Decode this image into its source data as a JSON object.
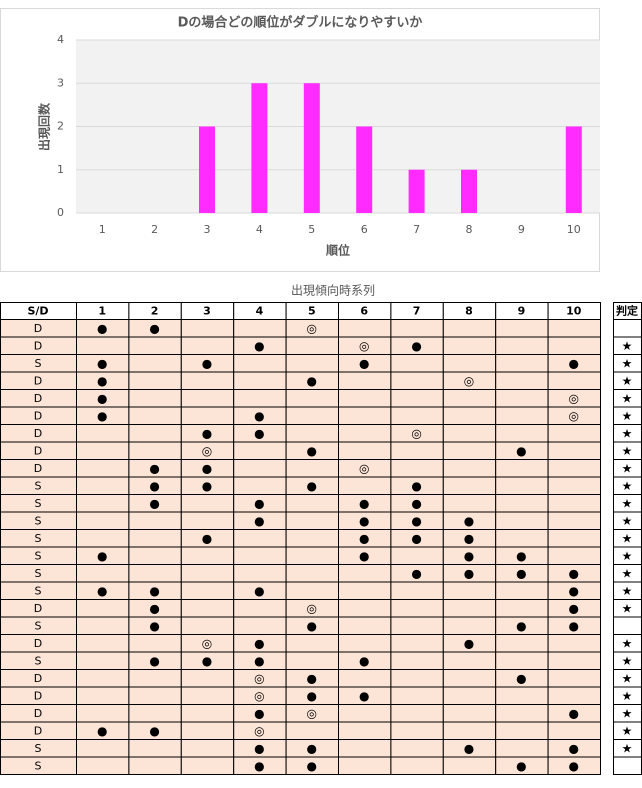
{
  "chart_data": {
    "type": "bar",
    "title": "Dの場合どの順位がダブルになりやすいか",
    "x_label": "順位",
    "y_label": "出現回数",
    "categories": [
      "1",
      "2",
      "3",
      "4",
      "5",
      "6",
      "7",
      "8",
      "9",
      "10"
    ],
    "values": [
      0,
      0,
      2,
      3,
      3,
      2,
      1,
      1,
      0,
      2
    ],
    "color": "#ff2bff",
    "ylim": [
      0,
      4
    ],
    "yticks": [
      0,
      1,
      2,
      3,
      4
    ],
    "grid": true
  },
  "table": {
    "title": "出現傾向時系列",
    "header": [
      "S/D",
      "1",
      "2",
      "3",
      "4",
      "5",
      "6",
      "7",
      "8",
      "9",
      "10",
      "判定"
    ],
    "rows": [
      [
        "D",
        "●",
        "●",
        null,
        null,
        "◎",
        null,
        null,
        null,
        null,
        null,
        null
      ],
      [
        "D",
        null,
        null,
        null,
        "●",
        null,
        "◎",
        "●",
        null,
        null,
        null,
        "★"
      ],
      [
        "S",
        "●",
        null,
        "●",
        null,
        null,
        "●",
        null,
        null,
        null,
        "●",
        "★"
      ],
      [
        "D",
        "●",
        null,
        null,
        null,
        "●",
        null,
        null,
        "◎",
        null,
        null,
        "★"
      ],
      [
        "D",
        "●",
        null,
        null,
        null,
        null,
        null,
        null,
        null,
        null,
        "◎",
        "★"
      ],
      [
        "D",
        "●",
        null,
        null,
        "●",
        null,
        null,
        null,
        null,
        null,
        "◎",
        "★"
      ],
      [
        "D",
        null,
        null,
        "●",
        "●",
        null,
        null,
        "◎",
        null,
        null,
        null,
        "★"
      ],
      [
        "D",
        null,
        null,
        "◎",
        null,
        "●",
        null,
        null,
        null,
        "●",
        null,
        "★"
      ],
      [
        "D",
        null,
        "●",
        "●",
        null,
        null,
        "◎",
        null,
        null,
        null,
        null,
        "★"
      ],
      [
        "S",
        null,
        "●",
        "●",
        null,
        "●",
        null,
        "●",
        null,
        null,
        null,
        "★"
      ],
      [
        "S",
        null,
        "●",
        null,
        "●",
        null,
        "●",
        "●",
        null,
        null,
        null,
        "★"
      ],
      [
        "S",
        null,
        null,
        null,
        "●",
        null,
        "●",
        "●",
        "●",
        null,
        null,
        "★"
      ],
      [
        "S",
        null,
        null,
        "●",
        null,
        null,
        "●",
        "●",
        "●",
        null,
        null,
        "★"
      ],
      [
        "S",
        "●",
        null,
        null,
        null,
        null,
        "●",
        null,
        "●",
        "●",
        null,
        "★"
      ],
      [
        "S",
        null,
        null,
        null,
        null,
        null,
        null,
        "●",
        "●",
        "●",
        "●",
        "★"
      ],
      [
        "S",
        "●",
        "●",
        null,
        "●",
        null,
        null,
        null,
        null,
        null,
        "●",
        "★"
      ],
      [
        "D",
        null,
        "●",
        null,
        null,
        "◎",
        null,
        null,
        null,
        null,
        "●",
        "★"
      ],
      [
        "S",
        null,
        "●",
        null,
        null,
        "●",
        null,
        null,
        null,
        "●",
        "●",
        null
      ],
      [
        "D",
        null,
        null,
        "◎",
        "●",
        null,
        null,
        null,
        "●",
        null,
        null,
        "★"
      ],
      [
        "S",
        null,
        "●",
        "●",
        "●",
        null,
        "●",
        null,
        null,
        null,
        null,
        "★"
      ],
      [
        "D",
        null,
        null,
        null,
        "◎",
        "●",
        null,
        null,
        null,
        "●",
        null,
        "★"
      ],
      [
        "D",
        null,
        null,
        null,
        "◎",
        "●",
        "●",
        null,
        null,
        null,
        null,
        "★"
      ],
      [
        "D",
        null,
        null,
        null,
        "●",
        "◎",
        null,
        null,
        null,
        null,
        "●",
        "★"
      ],
      [
        "D",
        "●",
        "●",
        null,
        "◎",
        null,
        null,
        null,
        null,
        null,
        null,
        "★"
      ],
      [
        "S",
        null,
        null,
        null,
        "●",
        "●",
        null,
        null,
        "●",
        null,
        "●",
        "★"
      ],
      [
        "S",
        null,
        null,
        null,
        "●",
        "●",
        null,
        null,
        null,
        "●",
        "●",
        null
      ]
    ]
  }
}
